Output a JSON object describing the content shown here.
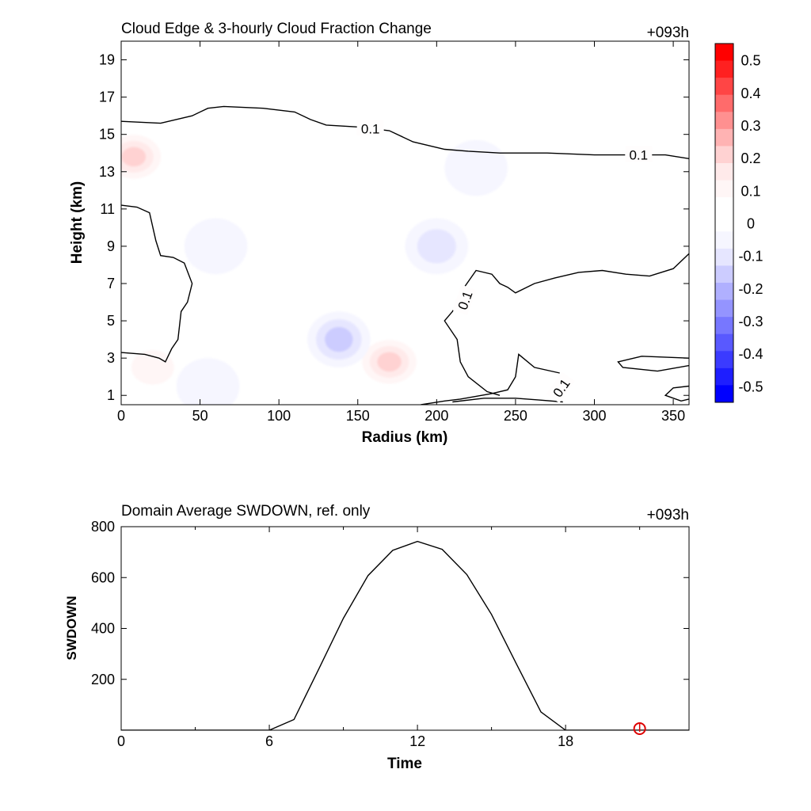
{
  "chart_data": [
    {
      "type": "heatmap",
      "title": "Cloud Edge & 3-hourly Cloud Fraction Change",
      "time_label": "+093h",
      "xlabel": "Radius (km)",
      "ylabel": "Height (km)",
      "xlim": [
        0,
        360
      ],
      "ylim": [
        0.5,
        20
      ],
      "x_ticks": [
        "0",
        "50",
        "100",
        "150",
        "200",
        "250",
        "300",
        "350"
      ],
      "y_ticks": [
        "1",
        "3",
        "5",
        "7",
        "9",
        "11",
        "13",
        "15",
        "17",
        "19"
      ],
      "colorbar": {
        "min": -0.55,
        "max": 0.55,
        "tick_labels": [
          "0.5",
          "0.4",
          "0.3",
          "0.2",
          "0.1",
          "0",
          "-0.1",
          "-0.2",
          "-0.3",
          "-0.4",
          "-0.5"
        ],
        "colors": [
          "#ff0000",
          "#ff2020",
          "#ff4545",
          "#ff6b6b",
          "#ff9090",
          "#ffb3b3",
          "#ffd2d2",
          "#ffeaea",
          "#fff6f6",
          "#ffffff",
          "#ffffff",
          "#f6f6ff",
          "#e6e6ff",
          "#ccccff",
          "#b0b0ff",
          "#9494ff",
          "#7777ff",
          "#5959ff",
          "#3b3bff",
          "#1e1eff",
          "#0000ff"
        ]
      },
      "contour_level_label": "0.1",
      "anomalies": [
        {
          "x": 8,
          "y": 13.8,
          "value": 0.22
        },
        {
          "x": 170,
          "y": 2.8,
          "value": 0.2
        },
        {
          "x": 138,
          "y": 4.0,
          "value": -0.16
        },
        {
          "x": 200,
          "y": 9.0,
          "value": -0.1
        },
        {
          "x": 60,
          "y": 9.0,
          "value": -0.06
        },
        {
          "x": 60,
          "y": 13.0,
          "value": 0.06
        },
        {
          "x": 120,
          "y": 10.0,
          "value": 0.06
        },
        {
          "x": 20,
          "y": 2.5,
          "value": 0.08
        },
        {
          "x": 45,
          "y": 5.0,
          "value": 0.05
        },
        {
          "x": 100,
          "y": 1.0,
          "value": 0.07
        },
        {
          "x": 105,
          "y": 2.0,
          "value": 0.07
        },
        {
          "x": 55,
          "y": 1.5,
          "value": -0.06
        },
        {
          "x": 225,
          "y": 13.2,
          "value": -0.04
        },
        {
          "x": 265,
          "y": 3.5,
          "value": 0.03
        }
      ],
      "contours": [
        [
          [
            0,
            15.7
          ],
          [
            25,
            15.6
          ],
          [
            45,
            16.0
          ],
          [
            55,
            16.4
          ],
          [
            65,
            16.5
          ],
          [
            90,
            16.4
          ],
          [
            110,
            16.2
          ],
          [
            120,
            15.8
          ],
          [
            130,
            15.5
          ],
          [
            150,
            15.4
          ],
          [
            170,
            15.2
          ],
          [
            185,
            14.6
          ],
          [
            205,
            14.2
          ],
          [
            220,
            14.1
          ],
          [
            240,
            14.0
          ],
          [
            270,
            14.0
          ],
          [
            300,
            13.9
          ],
          [
            320,
            13.9
          ],
          [
            345,
            13.9
          ],
          [
            360,
            13.7
          ]
        ],
        [
          [
            0,
            11.2
          ],
          [
            10,
            11.1
          ],
          [
            18,
            10.8
          ],
          [
            22,
            9.3
          ],
          [
            25,
            8.5
          ],
          [
            33,
            8.4
          ],
          [
            40,
            8.1
          ],
          [
            45,
            7.0
          ],
          [
            42,
            6.0
          ],
          [
            38,
            5.5
          ],
          [
            36,
            4.0
          ],
          [
            32,
            3.5
          ],
          [
            28,
            2.8
          ],
          [
            24,
            3.0
          ],
          [
            15,
            3.2
          ],
          [
            0,
            3.3
          ]
        ],
        [
          [
            190,
            0.5
          ],
          [
            205,
            0.7
          ],
          [
            215,
            0.8
          ],
          [
            235,
            1.1
          ],
          [
            245,
            1.3
          ],
          [
            250,
            2.0
          ],
          [
            252,
            3.2
          ],
          [
            262,
            2.5
          ],
          [
            278,
            2.2
          ]
        ],
        [
          [
            240,
            1.0
          ],
          [
            232,
            1.2
          ],
          [
            220,
            2.0
          ],
          [
            215,
            2.8
          ],
          [
            213,
            4.0
          ],
          [
            205,
            5.0
          ],
          [
            210,
            5.5
          ],
          [
            215,
            6.5
          ],
          [
            225,
            7.7
          ],
          [
            235,
            7.5
          ],
          [
            240,
            7.0
          ],
          [
            245,
            6.8
          ],
          [
            250,
            6.5
          ],
          [
            262,
            7.0
          ],
          [
            275,
            7.3
          ],
          [
            290,
            7.6
          ],
          [
            305,
            7.7
          ],
          [
            320,
            7.5
          ],
          [
            335,
            7.4
          ],
          [
            350,
            7.8
          ],
          [
            360,
            8.6
          ]
        ],
        [
          [
            210,
            0.65
          ],
          [
            230,
            0.85
          ],
          [
            250,
            0.85
          ],
          [
            265,
            0.75
          ],
          [
            280,
            0.65
          ]
        ],
        [
          [
            360,
            3.0
          ],
          [
            330,
            3.1
          ],
          [
            315,
            2.8
          ],
          [
            318,
            2.5
          ],
          [
            340,
            2.3
          ],
          [
            360,
            2.6
          ]
        ],
        [
          [
            360,
            1.5
          ],
          [
            350,
            1.4
          ],
          [
            345,
            1.0
          ],
          [
            355,
            0.7
          ],
          [
            360,
            0.8
          ]
        ]
      ],
      "contour_labels": [
        {
          "x": 158,
          "y": 15.3,
          "rotation": 0
        },
        {
          "x": 328,
          "y": 13.9,
          "rotation": 0
        },
        {
          "x": 218,
          "y": 6.1,
          "rotation": -70
        },
        {
          "x": 279,
          "y": 1.4,
          "rotation": -55
        }
      ]
    },
    {
      "type": "line",
      "title": "Domain Average SWDOWN, ref. only",
      "time_label": "+093h",
      "xlabel": "Time",
      "ylabel": "SWDOWN",
      "xlim": [
        0,
        23
      ],
      "ylim": [
        0,
        800
      ],
      "x_ticks": [
        "0",
        "6",
        "12",
        "18"
      ],
      "y_ticks": [
        "200",
        "400",
        "600",
        "800"
      ],
      "series": [
        {
          "x": [
            0,
            1,
            2,
            3,
            4,
            5,
            6,
            7,
            8,
            9,
            10,
            11,
            12,
            13,
            14,
            15,
            16,
            17,
            18,
            19,
            20,
            21,
            22,
            23
          ],
          "values": [
            0,
            0,
            0,
            0,
            0,
            0,
            0,
            42,
            240,
            440,
            608,
            707,
            742,
            711,
            612,
            455,
            262,
            72,
            0,
            0,
            0,
            0,
            0,
            0
          ]
        }
      ],
      "marker": {
        "x": 21,
        "y": 0,
        "color": "#dd0000"
      }
    }
  ]
}
